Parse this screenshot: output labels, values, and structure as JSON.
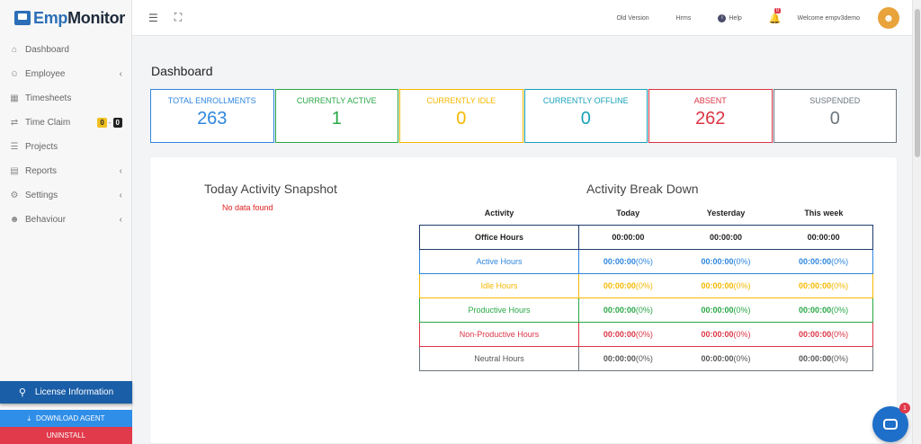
{
  "logo": {
    "part1": "Emp",
    "part2": "Monitor"
  },
  "sidebar": {
    "items": [
      {
        "label": "Dashboard",
        "icon": "home-icon",
        "glyph": "⌂",
        "has_chevron": false
      },
      {
        "label": "Employee",
        "icon": "users-icon",
        "glyph": "☺",
        "has_chevron": true
      },
      {
        "label": "Timesheets",
        "icon": "calendar-icon",
        "glyph": "▦",
        "has_chevron": false
      },
      {
        "label": "Time Claim",
        "icon": "exchange-icon",
        "glyph": "⇄",
        "has_chevron": false
      },
      {
        "label": "Projects",
        "icon": "list-icon",
        "glyph": "☰",
        "has_chevron": false
      },
      {
        "label": "Reports",
        "icon": "report-icon",
        "glyph": "▤",
        "has_chevron": true
      },
      {
        "label": "Settings",
        "icon": "gear-icon",
        "glyph": "⚙",
        "has_chevron": true
      },
      {
        "label": "Behaviour",
        "icon": "user-cog-icon",
        "glyph": "☻",
        "has_chevron": true
      }
    ],
    "time_claim_badges": {
      "pending": "0",
      "separator": "-",
      "approved": "0"
    },
    "license_label": "License Information",
    "download_label": "DOWNLOAD AGENT",
    "uninstall_label": "UNINSTALL"
  },
  "topbar": {
    "old_version": "Old Version",
    "hrms": "Hrms",
    "help": "Help",
    "notification_count": "0",
    "welcome": "Welcome  empv3demo"
  },
  "page_title": "Dashboard",
  "stats": [
    {
      "label": "TOTAL ENROLLMENTS",
      "value": "263",
      "color": "#2e86de"
    },
    {
      "label": "CURRENTLY ACTIVE",
      "value": "1",
      "color": "#28a745"
    },
    {
      "label": "CURRENTLY IDLE",
      "value": "0",
      "color": "#f5b800"
    },
    {
      "label": "CURRENTLY OFFLINE",
      "value": "0",
      "color": "#17a2b8"
    },
    {
      "label": "ABSENT",
      "value": "262",
      "color": "#dc3545"
    },
    {
      "label": "SUSPENDED",
      "value": "0",
      "color": "#6c757d"
    }
  ],
  "snapshot": {
    "title": "Today Activity Snapshot",
    "empty": "No data found"
  },
  "breakdown": {
    "title": "Activity Break Down",
    "headers": [
      "Activity",
      "Today",
      "Yesterday",
      "This week"
    ],
    "rows": [
      {
        "activity": "Office Hours",
        "color": "#222222",
        "border": "#1e3a6e",
        "today": "00:00:00",
        "today_pct": "",
        "yesterday": "00:00:00",
        "yesterday_pct": "",
        "week": "00:00:00",
        "week_pct": ""
      },
      {
        "activity": "Active Hours",
        "color": "#2e86de",
        "border": "#2e86de",
        "today": "00:00:00",
        "today_pct": "(0%)",
        "yesterday": "00:00:00",
        "yesterday_pct": "(0%)",
        "week": "00:00:00",
        "week_pct": "(0%)"
      },
      {
        "activity": "Idle Hours",
        "color": "#f5b800",
        "border": "#f5b800",
        "today": "00:00:00",
        "today_pct": "(0%)",
        "yesterday": "00:00:00",
        "yesterday_pct": "(0%)",
        "week": "00:00:00",
        "week_pct": "(0%)"
      },
      {
        "activity": "Productive Hours",
        "color": "#28a745",
        "border": "#28a745",
        "today": "00:00:00",
        "today_pct": "(0%)",
        "yesterday": "00:00:00",
        "yesterday_pct": "(0%)",
        "week": "00:00:00",
        "week_pct": "(0%)"
      },
      {
        "activity": "Non-Productive Hours",
        "color": "#dc3545",
        "border": "#dc3545",
        "today": "00:00:00",
        "today_pct": "(0%)",
        "yesterday": "00:00:00",
        "yesterday_pct": "(0%)",
        "week": "00:00:00",
        "week_pct": "(0%)"
      },
      {
        "activity": "Neutral Hours",
        "color": "#555555",
        "border": "#6c757d",
        "today": "00:00:00",
        "today_pct": "(0%)",
        "yesterday": "00:00:00",
        "yesterday_pct": "(0%)",
        "week": "00:00:00",
        "week_pct": "(0%)"
      }
    ]
  },
  "chat": {
    "badge": "1"
  }
}
